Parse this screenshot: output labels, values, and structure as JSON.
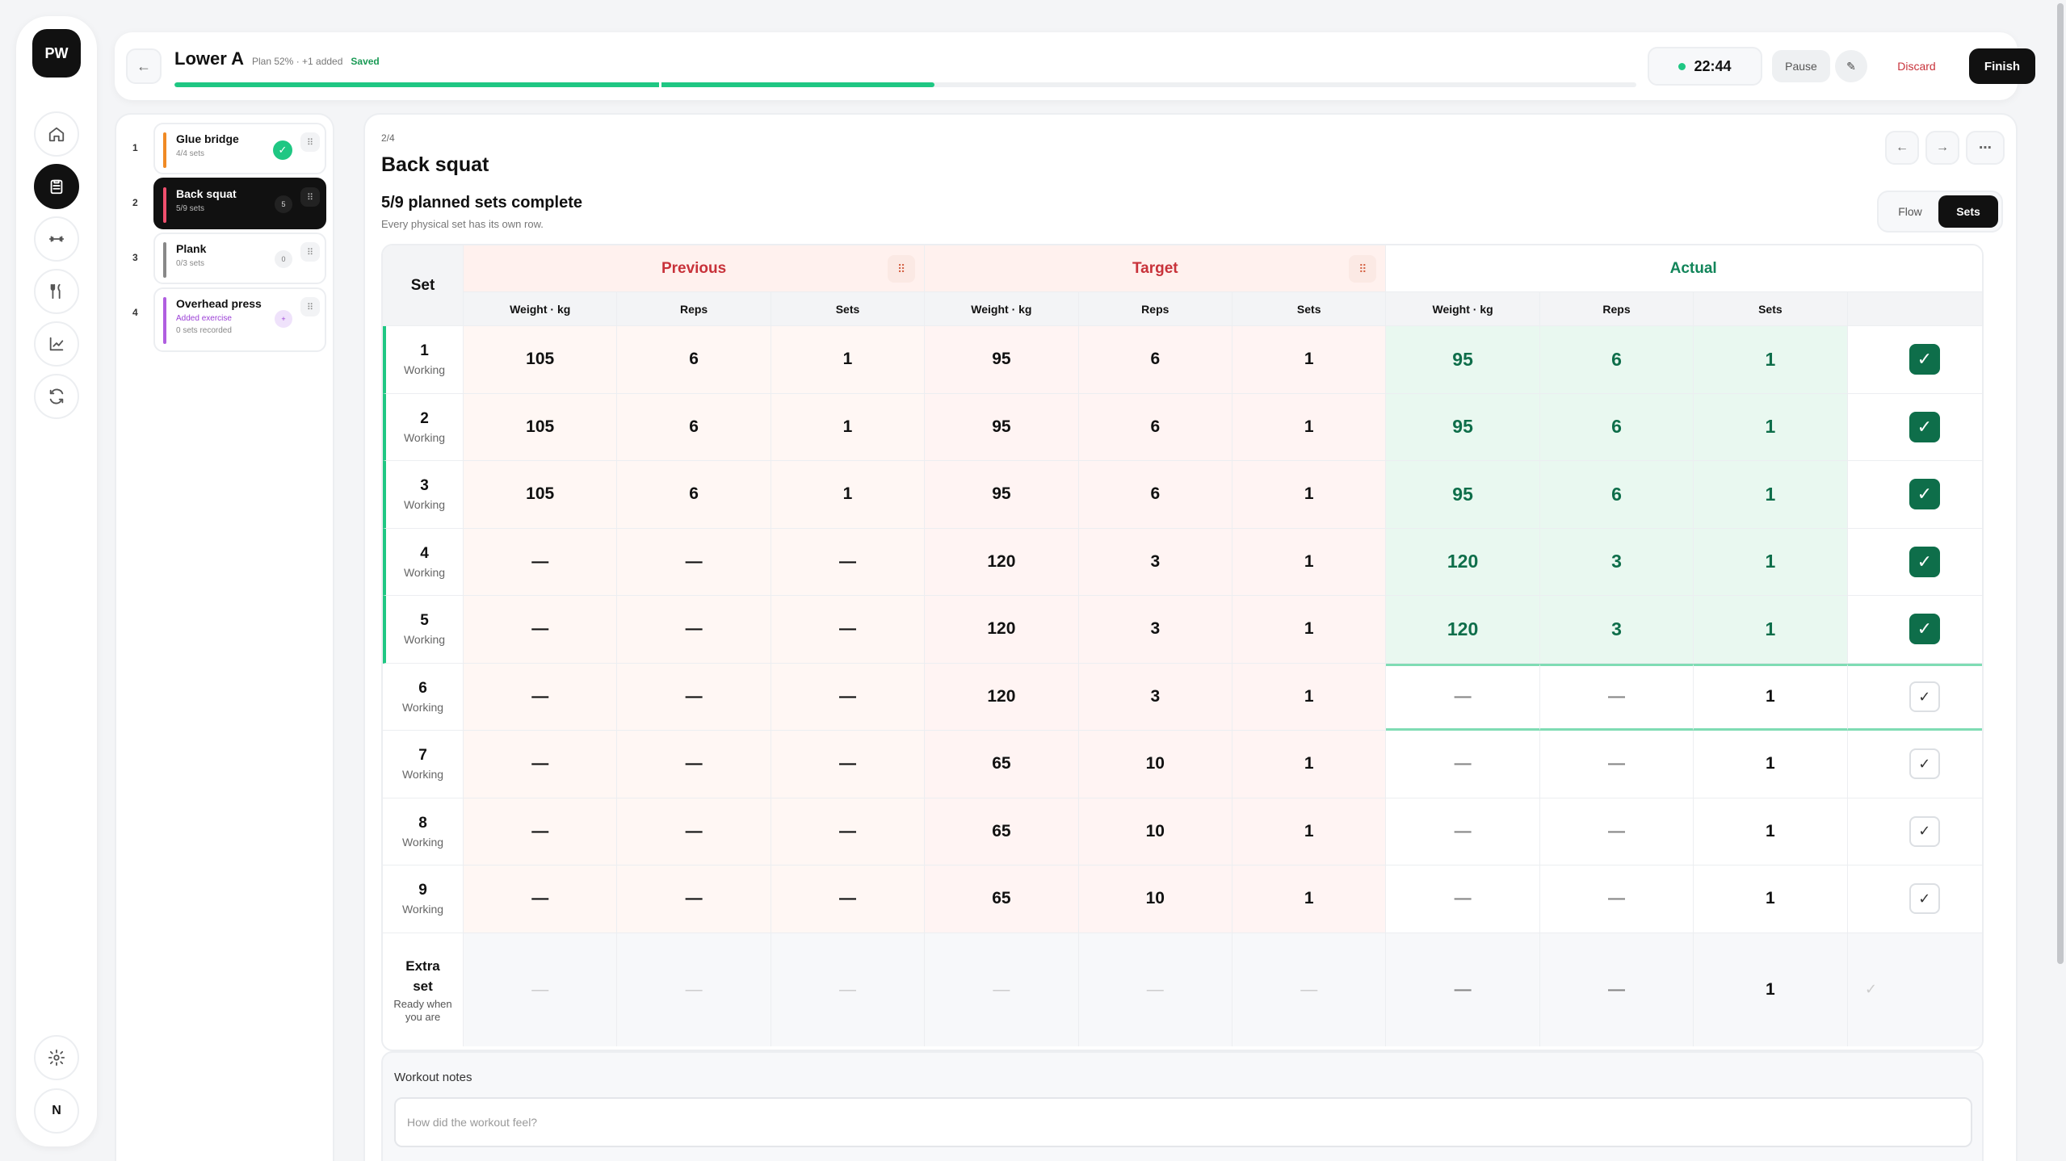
{
  "app": {
    "logo": "PW"
  },
  "rail": {
    "items": [
      {
        "name": "home-icon"
      },
      {
        "name": "clipboard-icon"
      },
      {
        "name": "dumbbell-icon"
      },
      {
        "name": "utensils-icon"
      },
      {
        "name": "chart-icon"
      },
      {
        "name": "refresh-icon"
      }
    ],
    "active_index": 1,
    "settings_icon": "gear-icon",
    "avatar": "N"
  },
  "header": {
    "back_icon": "←",
    "title": "Lower A",
    "plan_meta": "Plan 52% · +1 added",
    "saved": "Saved",
    "progress": 0.52,
    "timer": "22:44",
    "pause_label": "Pause",
    "edit_icon": "✎",
    "discard_label": "Discard",
    "finish_label": "Finish",
    "accent": "#1fc783"
  },
  "exercises": [
    {
      "num": "1",
      "name": "Glue bridge",
      "sub": "4/4 sets",
      "color": "#f08a24",
      "badge": "✓",
      "badge_type": "done"
    },
    {
      "num": "2",
      "name": "Back squat",
      "sub": "5/9 sets",
      "color": "#f0506e",
      "badge": "5",
      "badge_type": "dark",
      "active": true
    },
    {
      "num": "3",
      "name": "Plank",
      "sub": "0/3 sets",
      "color": "#888888",
      "badge": "0",
      "badge_type": "plain"
    },
    {
      "num": "4",
      "name": "Overhead press",
      "sub": "Added exercise",
      "sub2": "0 sets recorded",
      "color": "#b05ee0",
      "badge": "+",
      "badge_type": "purple"
    }
  ],
  "main": {
    "position": "2/4",
    "title": "Back squat",
    "prev_icon": "←",
    "next_icon": "→",
    "more_icon": "⋯",
    "sets_heading": "5/9 planned sets complete",
    "sets_sub": "Every physical set has its own row.",
    "view_toggle": [
      "Flow",
      "Sets"
    ],
    "view_active": "Sets"
  },
  "table": {
    "set_header": "Set",
    "groups": [
      "Previous",
      "Target",
      "Actual"
    ],
    "subheaders": [
      "Weight · kg",
      "Reps",
      "Sets",
      "Weight · kg",
      "Reps",
      "Sets",
      "Weight · kg",
      "Reps",
      "Sets"
    ],
    "drag_icon": "⠿",
    "rows": [
      {
        "set": "1",
        "label": "Working",
        "prev": [
          "105",
          "6",
          "1"
        ],
        "target": [
          "95",
          "6",
          "1"
        ],
        "actual": [
          "95",
          "6",
          "1"
        ],
        "done": true
      },
      {
        "set": "2",
        "label": "Working",
        "prev": [
          "105",
          "6",
          "1"
        ],
        "target": [
          "95",
          "6",
          "1"
        ],
        "actual": [
          "95",
          "6",
          "1"
        ],
        "done": true
      },
      {
        "set": "3",
        "label": "Working",
        "prev": [
          "105",
          "6",
          "1"
        ],
        "target": [
          "95",
          "6",
          "1"
        ],
        "actual": [
          "95",
          "6",
          "1"
        ],
        "done": true
      },
      {
        "set": "4",
        "label": "Working",
        "prev": [
          "—",
          "—",
          "—"
        ],
        "target": [
          "120",
          "3",
          "1"
        ],
        "actual": [
          "120",
          "3",
          "1"
        ],
        "done": true
      },
      {
        "set": "5",
        "label": "Working",
        "prev": [
          "—",
          "—",
          "—"
        ],
        "target": [
          "120",
          "3",
          "1"
        ],
        "actual": [
          "120",
          "3",
          "1"
        ],
        "done": true
      },
      {
        "set": "6",
        "label": "Working",
        "prev": [
          "—",
          "—",
          "—"
        ],
        "target": [
          "120",
          "3",
          "1"
        ],
        "actual": [
          "—",
          "—",
          "1"
        ],
        "done": false,
        "current": true
      },
      {
        "set": "7",
        "label": "Working",
        "prev": [
          "—",
          "—",
          "—"
        ],
        "target": [
          "65",
          "10",
          "1"
        ],
        "actual": [
          "—",
          "—",
          "1"
        ],
        "done": false
      },
      {
        "set": "8",
        "label": "Working",
        "prev": [
          "—",
          "—",
          "—"
        ],
        "target": [
          "65",
          "10",
          "1"
        ],
        "actual": [
          "—",
          "—",
          "1"
        ],
        "done": false
      },
      {
        "set": "9",
        "label": "Working",
        "prev": [
          "—",
          "—",
          "—"
        ],
        "target": [
          "65",
          "10",
          "1"
        ],
        "actual": [
          "—",
          "—",
          "1"
        ],
        "done": false
      }
    ],
    "extra": {
      "title": "Extra set",
      "sub": "Ready when you are",
      "prev": [
        "—",
        "—",
        "—"
      ],
      "target": [
        "—",
        "—",
        "—"
      ],
      "actual": [
        "—",
        "—",
        "1"
      ]
    },
    "check_icon": "✓",
    "colors": {
      "prev_bg": "#fff7f4",
      "target_bg": "#fff4f3",
      "actual_done_bg": "#e9f8f0",
      "header_red": "#c8323a",
      "header_green": "#12855a",
      "done_border": "#1fc783"
    }
  },
  "notes": {
    "label": "Workout notes",
    "placeholder": "How did the workout feel?"
  }
}
